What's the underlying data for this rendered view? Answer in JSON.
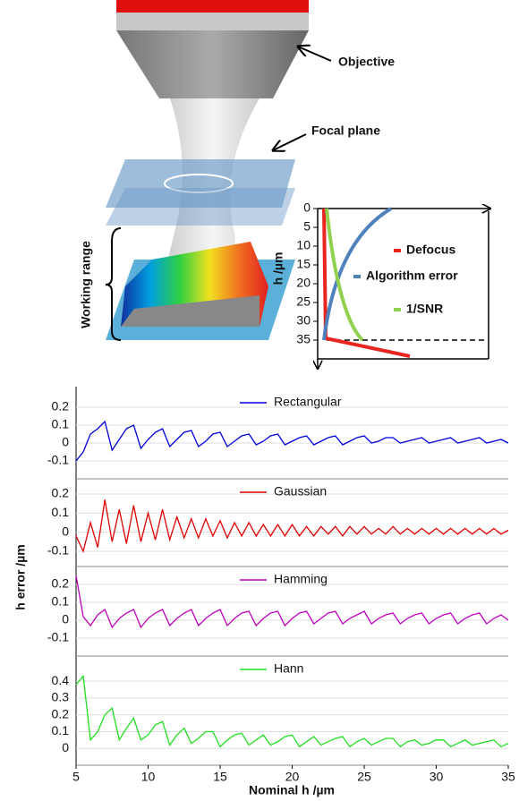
{
  "diagram": {
    "labels": {
      "objective": "Objective",
      "focal_plane": "Focal plane",
      "working_range": "Working range"
    }
  },
  "inset": {
    "ylabel": "h /µm",
    "ylim": [
      0,
      40
    ],
    "yticks": [
      0,
      5,
      10,
      15,
      20,
      25,
      30,
      35
    ],
    "legend": [
      {
        "name": "Defocus",
        "color": "#e8251f"
      },
      {
        "name": "Algorithm error",
        "color": "#4f81bd"
      },
      {
        "name": "1/SNR",
        "color": "#92d050"
      }
    ]
  },
  "figure": {
    "xlabel": "Nominal h /µm",
    "ylabel": "h error /µm"
  },
  "chart_data": [
    {
      "type": "line",
      "xlim": [
        5,
        35
      ],
      "ylim": [
        -0.2,
        0.3
      ],
      "yticks": [
        -0.1,
        0,
        0.1,
        0.2
      ],
      "grid": true,
      "x": [
        5,
        5.5,
        6,
        6.5,
        7,
        7.5,
        8,
        8.5,
        9,
        9.5,
        10,
        10.5,
        11,
        11.5,
        12,
        12.5,
        13,
        13.5,
        14,
        14.5,
        15,
        15.5,
        16,
        16.5,
        17,
        17.5,
        18,
        18.5,
        19,
        19.5,
        20,
        20.5,
        21,
        21.5,
        22,
        22.5,
        23,
        23.5,
        24,
        24.5,
        25,
        25.5,
        26,
        26.5,
        27,
        27.5,
        28,
        28.5,
        29,
        29.5,
        30,
        30.5,
        31,
        31.5,
        32,
        32.5,
        33,
        33.5,
        34,
        34.5,
        35
      ],
      "series": [
        {
          "name": "Rectangular",
          "color": "#0000e0",
          "values": [
            -0.1,
            -0.05,
            0.05,
            0.08,
            0.12,
            -0.04,
            0.02,
            0.08,
            0.1,
            -0.03,
            0.02,
            0.06,
            0.08,
            -0.02,
            0.02,
            0.06,
            0.07,
            -0.02,
            0.01,
            0.05,
            0.06,
            -0.02,
            0.01,
            0.04,
            0.05,
            -0.01,
            0.01,
            0.04,
            0.05,
            -0.01,
            0.01,
            0.03,
            0.04,
            -0.01,
            0.01,
            0.03,
            0.04,
            -0.01,
            0.01,
            0.03,
            0.04,
            0,
            0.01,
            0.03,
            0.03,
            0,
            0.01,
            0.02,
            0.03,
            0,
            0.01,
            0.02,
            0.03,
            0,
            0.01,
            0.02,
            0.03,
            0,
            0.01,
            0.02,
            0
          ]
        }
      ]
    },
    {
      "type": "line",
      "xlim": [
        5,
        35
      ],
      "ylim": [
        -0.18,
        0.28
      ],
      "yticks": [
        -0.1,
        0,
        0.1,
        0.2
      ],
      "grid": true,
      "x": [
        5,
        5.5,
        6,
        6.5,
        7,
        7.5,
        8,
        8.5,
        9,
        9.5,
        10,
        10.5,
        11,
        11.5,
        12,
        12.5,
        13,
        13.5,
        14,
        14.5,
        15,
        15.5,
        16,
        16.5,
        17,
        17.5,
        18,
        18.5,
        19,
        19.5,
        20,
        20.5,
        21,
        21.5,
        22,
        22.5,
        23,
        23.5,
        24,
        24.5,
        25,
        25.5,
        26,
        26.5,
        27,
        27.5,
        28,
        28.5,
        29,
        29.5,
        30,
        30.5,
        31,
        31.5,
        32,
        32.5,
        33,
        33.5,
        34,
        34.5,
        35
      ],
      "series": [
        {
          "name": "Gaussian",
          "color": "#e00000",
          "values": [
            -0.02,
            -0.1,
            0.05,
            -0.08,
            0.17,
            -0.05,
            0.12,
            -0.06,
            0.14,
            -0.05,
            0.1,
            -0.04,
            0.12,
            -0.04,
            0.08,
            -0.03,
            0.07,
            -0.03,
            0.07,
            -0.02,
            0.06,
            -0.03,
            0.05,
            -0.02,
            0.05,
            -0.02,
            0.04,
            -0.02,
            0.04,
            -0.02,
            0.04,
            -0.02,
            0.03,
            -0.02,
            0.03,
            -0.01,
            0.03,
            -0.02,
            0.03,
            -0.01,
            0.03,
            -0.01,
            0.02,
            -0.01,
            0.03,
            -0.01,
            0.02,
            -0.01,
            0.02,
            -0.01,
            0.02,
            -0.01,
            0.02,
            -0.01,
            0.02,
            -0.01,
            0.02,
            -0.01,
            0.02,
            -0.01,
            0.01
          ]
        }
      ]
    },
    {
      "type": "line",
      "xlim": [
        5,
        35
      ],
      "ylim": [
        -0.2,
        0.3
      ],
      "yticks": [
        -0.1,
        0,
        0.1,
        0.2
      ],
      "grid": true,
      "x": [
        5,
        5.5,
        6,
        6.5,
        7,
        7.5,
        8,
        8.5,
        9,
        9.5,
        10,
        10.5,
        11,
        11.5,
        12,
        12.5,
        13,
        13.5,
        14,
        14.5,
        15,
        15.5,
        16,
        16.5,
        17,
        17.5,
        18,
        18.5,
        19,
        19.5,
        20,
        20.5,
        21,
        21.5,
        22,
        22.5,
        23,
        23.5,
        24,
        24.5,
        25,
        25.5,
        26,
        26.5,
        27,
        27.5,
        28,
        28.5,
        29,
        29.5,
        30,
        30.5,
        31,
        31.5,
        32,
        32.5,
        33,
        33.5,
        34,
        34.5,
        35
      ],
      "series": [
        {
          "name": "Hamming",
          "color": "#c000c0",
          "values": [
            0.25,
            0.02,
            -0.03,
            0.03,
            0.06,
            -0.04,
            0.01,
            0.04,
            0.06,
            -0.04,
            0.01,
            0.04,
            0.06,
            -0.03,
            0.01,
            0.04,
            0.06,
            -0.03,
            0.01,
            0.04,
            0.06,
            -0.03,
            0.01,
            0.04,
            0.05,
            -0.03,
            0.01,
            0.04,
            0.05,
            -0.03,
            0.01,
            0.04,
            0.05,
            -0.02,
            0.01,
            0.04,
            0.05,
            -0.02,
            0.01,
            0.03,
            0.05,
            -0.02,
            0.01,
            0.03,
            0.04,
            -0.02,
            0.01,
            0.03,
            0.04,
            -0.02,
            0.01,
            0.03,
            0.04,
            -0.02,
            0.01,
            0.03,
            0.04,
            -0.02,
            0.01,
            0.03,
            0
          ]
        }
      ]
    },
    {
      "type": "line",
      "xlim": [
        5,
        35
      ],
      "ylim": [
        -0.1,
        0.55
      ],
      "yticks": [
        0,
        0.1,
        0.2,
        0.3,
        0.4
      ],
      "xticks": [
        5,
        10,
        15,
        20,
        25,
        30,
        35
      ],
      "grid": true,
      "x": [
        5,
        5.5,
        6,
        6.5,
        7,
        7.5,
        8,
        8.5,
        9,
        9.5,
        10,
        10.5,
        11,
        11.5,
        12,
        12.5,
        13,
        13.5,
        14,
        14.5,
        15,
        15.5,
        16,
        16.5,
        17,
        17.5,
        18,
        18.5,
        19,
        19.5,
        20,
        20.5,
        21,
        21.5,
        22,
        22.5,
        23,
        23.5,
        24,
        24.5,
        25,
        25.5,
        26,
        26.5,
        27,
        27.5,
        28,
        28.5,
        29,
        29.5,
        30,
        30.5,
        31,
        31.5,
        32,
        32.5,
        33,
        33.5,
        34,
        34.5,
        35
      ],
      "series": [
        {
          "name": "Hann",
          "color": "#20e020",
          "values": [
            0.38,
            0.43,
            0.05,
            0.1,
            0.2,
            0.24,
            0.05,
            0.12,
            0.18,
            0.05,
            0.08,
            0.14,
            0.16,
            0.02,
            0.08,
            0.12,
            0.03,
            0.06,
            0.1,
            0.1,
            0.01,
            0.05,
            0.08,
            0.09,
            0.02,
            0.05,
            0.08,
            0.02,
            0.04,
            0.07,
            0.08,
            0.01,
            0.04,
            0.07,
            0.02,
            0.04,
            0.06,
            0.07,
            0.01,
            0.04,
            0.06,
            0.02,
            0.04,
            0.06,
            0.06,
            0.01,
            0.04,
            0.05,
            0.02,
            0.03,
            0.05,
            0.05,
            0.01,
            0.03,
            0.05,
            0.02,
            0.03,
            0.04,
            0.05,
            0.01,
            0.03
          ]
        }
      ]
    }
  ]
}
